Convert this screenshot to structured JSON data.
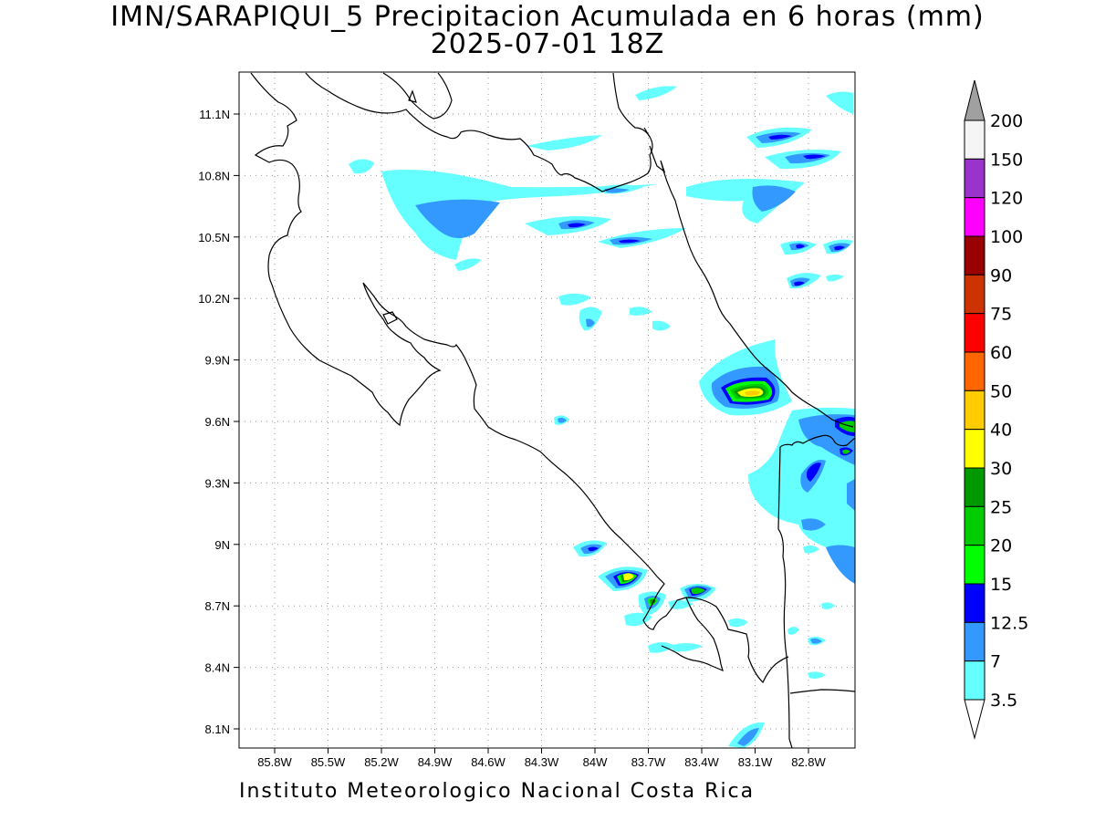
{
  "title": {
    "line1": "IMN/SARAPIQUI_5 Precipitacion Acumulada en 6 horas (mm)",
    "line2": "2025-07-01 18Z"
  },
  "footer": "Instituto Meteorologico Nacional Costa Rica",
  "map": {
    "lon_ticks": [
      "85.8W",
      "85.5W",
      "85.2W",
      "84.9W",
      "84.6W",
      "84.3W",
      "84W",
      "83.7W",
      "83.4W",
      "83.1W",
      "82.8W"
    ],
    "lat_ticks": [
      "11.1N",
      "10.8N",
      "10.5N",
      "10.2N",
      "9.9N",
      "9.6N",
      "9.3N",
      "9N",
      "8.7N",
      "8.4N",
      "8.1N"
    ],
    "grid": "dotted"
  },
  "colorbar": {
    "levels": [
      "200",
      "150",
      "120",
      "100",
      "90",
      "75",
      "60",
      "50",
      "40",
      "30",
      "25",
      "20",
      "15",
      "12.5",
      "7",
      "3.5"
    ],
    "colors": [
      "#f5f5f5",
      "#9933cc",
      "#ff00ff",
      "#990000",
      "#cc3300",
      "#ff0000",
      "#ff6600",
      "#ffcc00",
      "#ffff00",
      "#009900",
      "#00cc00",
      "#00ff00",
      "#0000ff",
      "#3399ff",
      "#66ffff"
    ],
    "cap_top_color": "#a0a0a0",
    "cap_bottom_color": "#ffffff"
  },
  "precip_cells": [
    {
      "lon": -84.62,
      "lat": 10.62,
      "mm": 7
    },
    {
      "lon": -84.9,
      "lat": 10.45,
      "mm": 7
    },
    {
      "lon": -84.05,
      "lat": 10.55,
      "mm": 12.5
    },
    {
      "lon": -83.78,
      "lat": 10.48,
      "mm": 12.5
    },
    {
      "lon": -83.0,
      "lat": 10.98,
      "mm": 12.5
    },
    {
      "lon": -82.82,
      "lat": 10.88,
      "mm": 12.5
    },
    {
      "lon": -83.05,
      "lat": 10.65,
      "mm": 7
    },
    {
      "lon": -82.85,
      "lat": 10.45,
      "mm": 12.5
    },
    {
      "lon": -82.72,
      "lat": 10.45,
      "mm": 12.5
    },
    {
      "lon": -82.85,
      "lat": 10.27,
      "mm": 12.5
    },
    {
      "lon": -83.1,
      "lat": 9.75,
      "mm": 40
    },
    {
      "lon": -82.7,
      "lat": 9.57,
      "mm": 25
    },
    {
      "lon": -82.75,
      "lat": 9.45,
      "mm": 12.5
    },
    {
      "lon": -82.78,
      "lat": 9.38,
      "mm": 12.5
    },
    {
      "lon": -84.0,
      "lat": 8.98,
      "mm": 12.5
    },
    {
      "lon": -83.79,
      "lat": 8.85,
      "mm": 40
    },
    {
      "lon": -83.67,
      "lat": 8.73,
      "mm": 25
    },
    {
      "lon": -83.4,
      "lat": 8.78,
      "mm": 20
    },
    {
      "lon": -83.02,
      "lat": 8.08,
      "mm": 7
    }
  ]
}
